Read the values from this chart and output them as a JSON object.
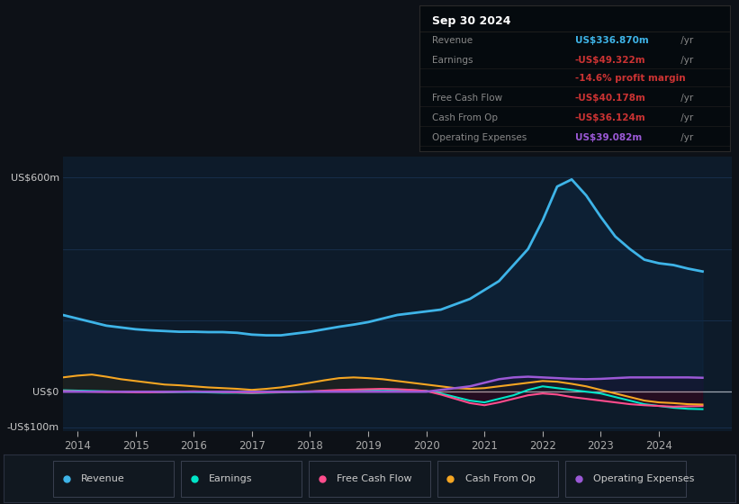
{
  "bg_color": "#0d1117",
  "chart_bg": "#0d1b2a",
  "ylim": [
    -110,
    660
  ],
  "years": [
    2013.75,
    2014.0,
    2014.25,
    2014.5,
    2014.75,
    2015.0,
    2015.25,
    2015.5,
    2015.75,
    2016.0,
    2016.25,
    2016.5,
    2016.75,
    2017.0,
    2017.25,
    2017.5,
    2017.75,
    2018.0,
    2018.25,
    2018.5,
    2018.75,
    2019.0,
    2019.25,
    2019.5,
    2019.75,
    2020.0,
    2020.25,
    2020.5,
    2020.75,
    2021.0,
    2021.25,
    2021.5,
    2021.75,
    2022.0,
    2022.25,
    2022.5,
    2022.75,
    2023.0,
    2023.25,
    2023.5,
    2023.75,
    2024.0,
    2024.25,
    2024.5,
    2024.75
  ],
  "revenue": [
    215,
    205,
    195,
    185,
    180,
    175,
    172,
    170,
    168,
    168,
    167,
    167,
    165,
    160,
    158,
    158,
    163,
    168,
    175,
    182,
    188,
    195,
    205,
    215,
    220,
    225,
    230,
    245,
    260,
    285,
    310,
    355,
    400,
    480,
    575,
    595,
    550,
    490,
    435,
    400,
    370,
    360,
    355,
    345,
    337
  ],
  "earnings": [
    4,
    3,
    2,
    1,
    0,
    -1,
    -2,
    -2,
    -1,
    -1,
    -2,
    -3,
    -3,
    -4,
    -3,
    -2,
    -1,
    0,
    2,
    3,
    4,
    5,
    6,
    5,
    4,
    2,
    -5,
    -15,
    -25,
    -30,
    -20,
    -10,
    5,
    15,
    10,
    5,
    0,
    -5,
    -15,
    -25,
    -35,
    -40,
    -45,
    -48,
    -49
  ],
  "free_cash_flow": [
    2,
    1,
    0,
    -1,
    -1,
    -2,
    -2,
    -1,
    0,
    1,
    0,
    -1,
    -2,
    -3,
    -2,
    -1,
    0,
    1,
    3,
    5,
    6,
    7,
    8,
    7,
    5,
    2,
    -8,
    -20,
    -32,
    -38,
    -30,
    -20,
    -10,
    -5,
    -8,
    -15,
    -20,
    -25,
    -30,
    -35,
    -38,
    -40,
    -42,
    -41,
    -40
  ],
  "cash_from_op": [
    40,
    45,
    48,
    42,
    35,
    30,
    25,
    20,
    18,
    15,
    12,
    10,
    8,
    5,
    8,
    12,
    18,
    25,
    32,
    38,
    40,
    38,
    35,
    30,
    25,
    20,
    15,
    10,
    8,
    10,
    15,
    20,
    25,
    30,
    28,
    22,
    15,
    5,
    -5,
    -15,
    -25,
    -30,
    -32,
    -35,
    -36
  ],
  "op_expenses": [
    0,
    0,
    0,
    0,
    0,
    0,
    0,
    0,
    0,
    0,
    0,
    0,
    0,
    0,
    0,
    0,
    0,
    0,
    0,
    0,
    0,
    0,
    0,
    0,
    0,
    0,
    5,
    10,
    15,
    25,
    35,
    40,
    42,
    40,
    38,
    36,
    35,
    36,
    38,
    40,
    40,
    40,
    40,
    40,
    39
  ],
  "revenue_color": "#3eb4e8",
  "earnings_color": "#00e5c8",
  "fcf_color": "#ff4d8d",
  "cashop_color": "#f5a623",
  "opex_color": "#9b59d6",
  "xtick_years": [
    2014,
    2015,
    2016,
    2017,
    2018,
    2019,
    2020,
    2021,
    2022,
    2023,
    2024
  ],
  "info_box": {
    "title": "Sep 30 2024",
    "rows": [
      {
        "label": "Revenue",
        "value": "US$336.870m",
        "vcolor": "#3eb4e8",
        "suffix": " /yr",
        "extra": null,
        "ecolor": null
      },
      {
        "label": "Earnings",
        "value": "-US$49.322m",
        "vcolor": "#cc3333",
        "suffix": " /yr",
        "extra": "-14.6% profit margin",
        "ecolor": "#cc3333"
      },
      {
        "label": "Free Cash Flow",
        "value": "-US$40.178m",
        "vcolor": "#cc3333",
        "suffix": " /yr",
        "extra": null,
        "ecolor": null
      },
      {
        "label": "Cash From Op",
        "value": "-US$36.124m",
        "vcolor": "#cc3333",
        "suffix": " /yr",
        "extra": null,
        "ecolor": null
      },
      {
        "label": "Operating Expenses",
        "value": "US$39.082m",
        "vcolor": "#9b59d6",
        "suffix": " /yr",
        "extra": null,
        "ecolor": null
      }
    ]
  },
  "legend_items": [
    {
      "label": "Revenue",
      "color": "#3eb4e8"
    },
    {
      "label": "Earnings",
      "color": "#00e5c8"
    },
    {
      "label": "Free Cash Flow",
      "color": "#ff4d8d"
    },
    {
      "label": "Cash From Op",
      "color": "#f5a623"
    },
    {
      "label": "Operating Expenses",
      "color": "#9b59d6"
    }
  ]
}
